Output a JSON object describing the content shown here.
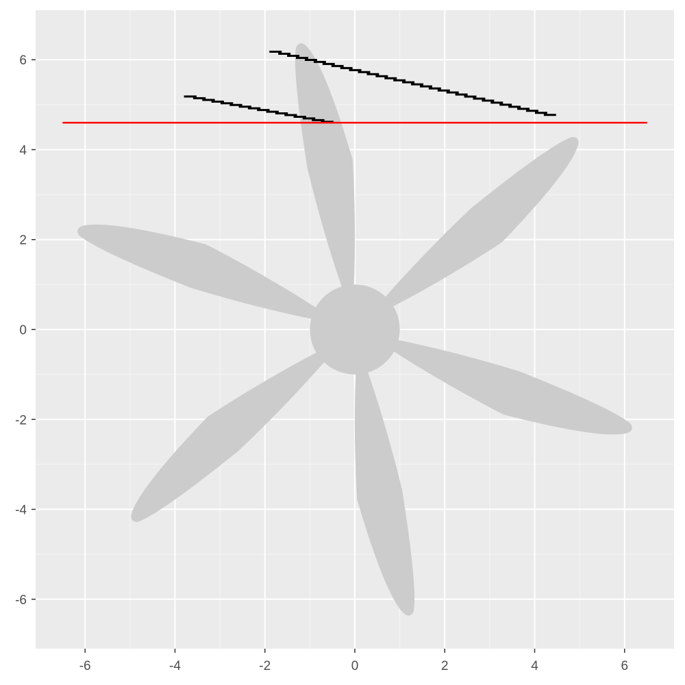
{
  "chart_data": {
    "type": "scatter",
    "title": "",
    "xlabel": "",
    "ylabel": "",
    "xlim": [
      -7.1,
      7.1
    ],
    "ylim": [
      -7.1,
      7.1
    ],
    "grid": true,
    "legend": "none",
    "x_ticks": [
      {
        "value": -6,
        "label": "-6"
      },
      {
        "value": -4,
        "label": "-4"
      },
      {
        "value": -2,
        "label": "-2"
      },
      {
        "value": 0,
        "label": "0"
      },
      {
        "value": 2,
        "label": "2"
      },
      {
        "value": 4,
        "label": "4"
      },
      {
        "value": 6,
        "label": "6"
      }
    ],
    "y_ticks": [
      {
        "value": -6,
        "label": "-6"
      },
      {
        "value": -4,
        "label": "-4"
      },
      {
        "value": -2,
        "label": "-2"
      },
      {
        "value": 0,
        "label": "0"
      },
      {
        "value": 2,
        "label": "2"
      },
      {
        "value": 4,
        "label": "4"
      },
      {
        "value": 6,
        "label": "6"
      }
    ],
    "propeller": {
      "color": "#cccccc",
      "hub_center": [
        0,
        0
      ],
      "hub_radius": 1.0,
      "blades": [
        {
          "tip": [
            -1.2,
            6.3
          ]
        },
        {
          "tip": [
            4.9,
            4.2
          ]
        },
        {
          "tip": [
            6.1,
            -2.2
          ]
        },
        {
          "tip": [
            1.2,
            -6.3
          ]
        },
        {
          "tip": [
            -4.9,
            -4.2
          ]
        },
        {
          "tip": [
            -6.1,
            2.2
          ]
        }
      ]
    },
    "reference_line": {
      "y": 4.6,
      "x_from": -6.5,
      "x_to": 6.5,
      "color": "#ff0000"
    },
    "stepped_lines": {
      "color": "#000000",
      "lines": [
        {
          "from": [
            -1.9,
            6.2
          ],
          "to": [
            4.4,
            4.75
          ]
        },
        {
          "from": [
            -3.8,
            5.2
          ],
          "to": [
            -0.55,
            4.6
          ]
        }
      ]
    }
  }
}
